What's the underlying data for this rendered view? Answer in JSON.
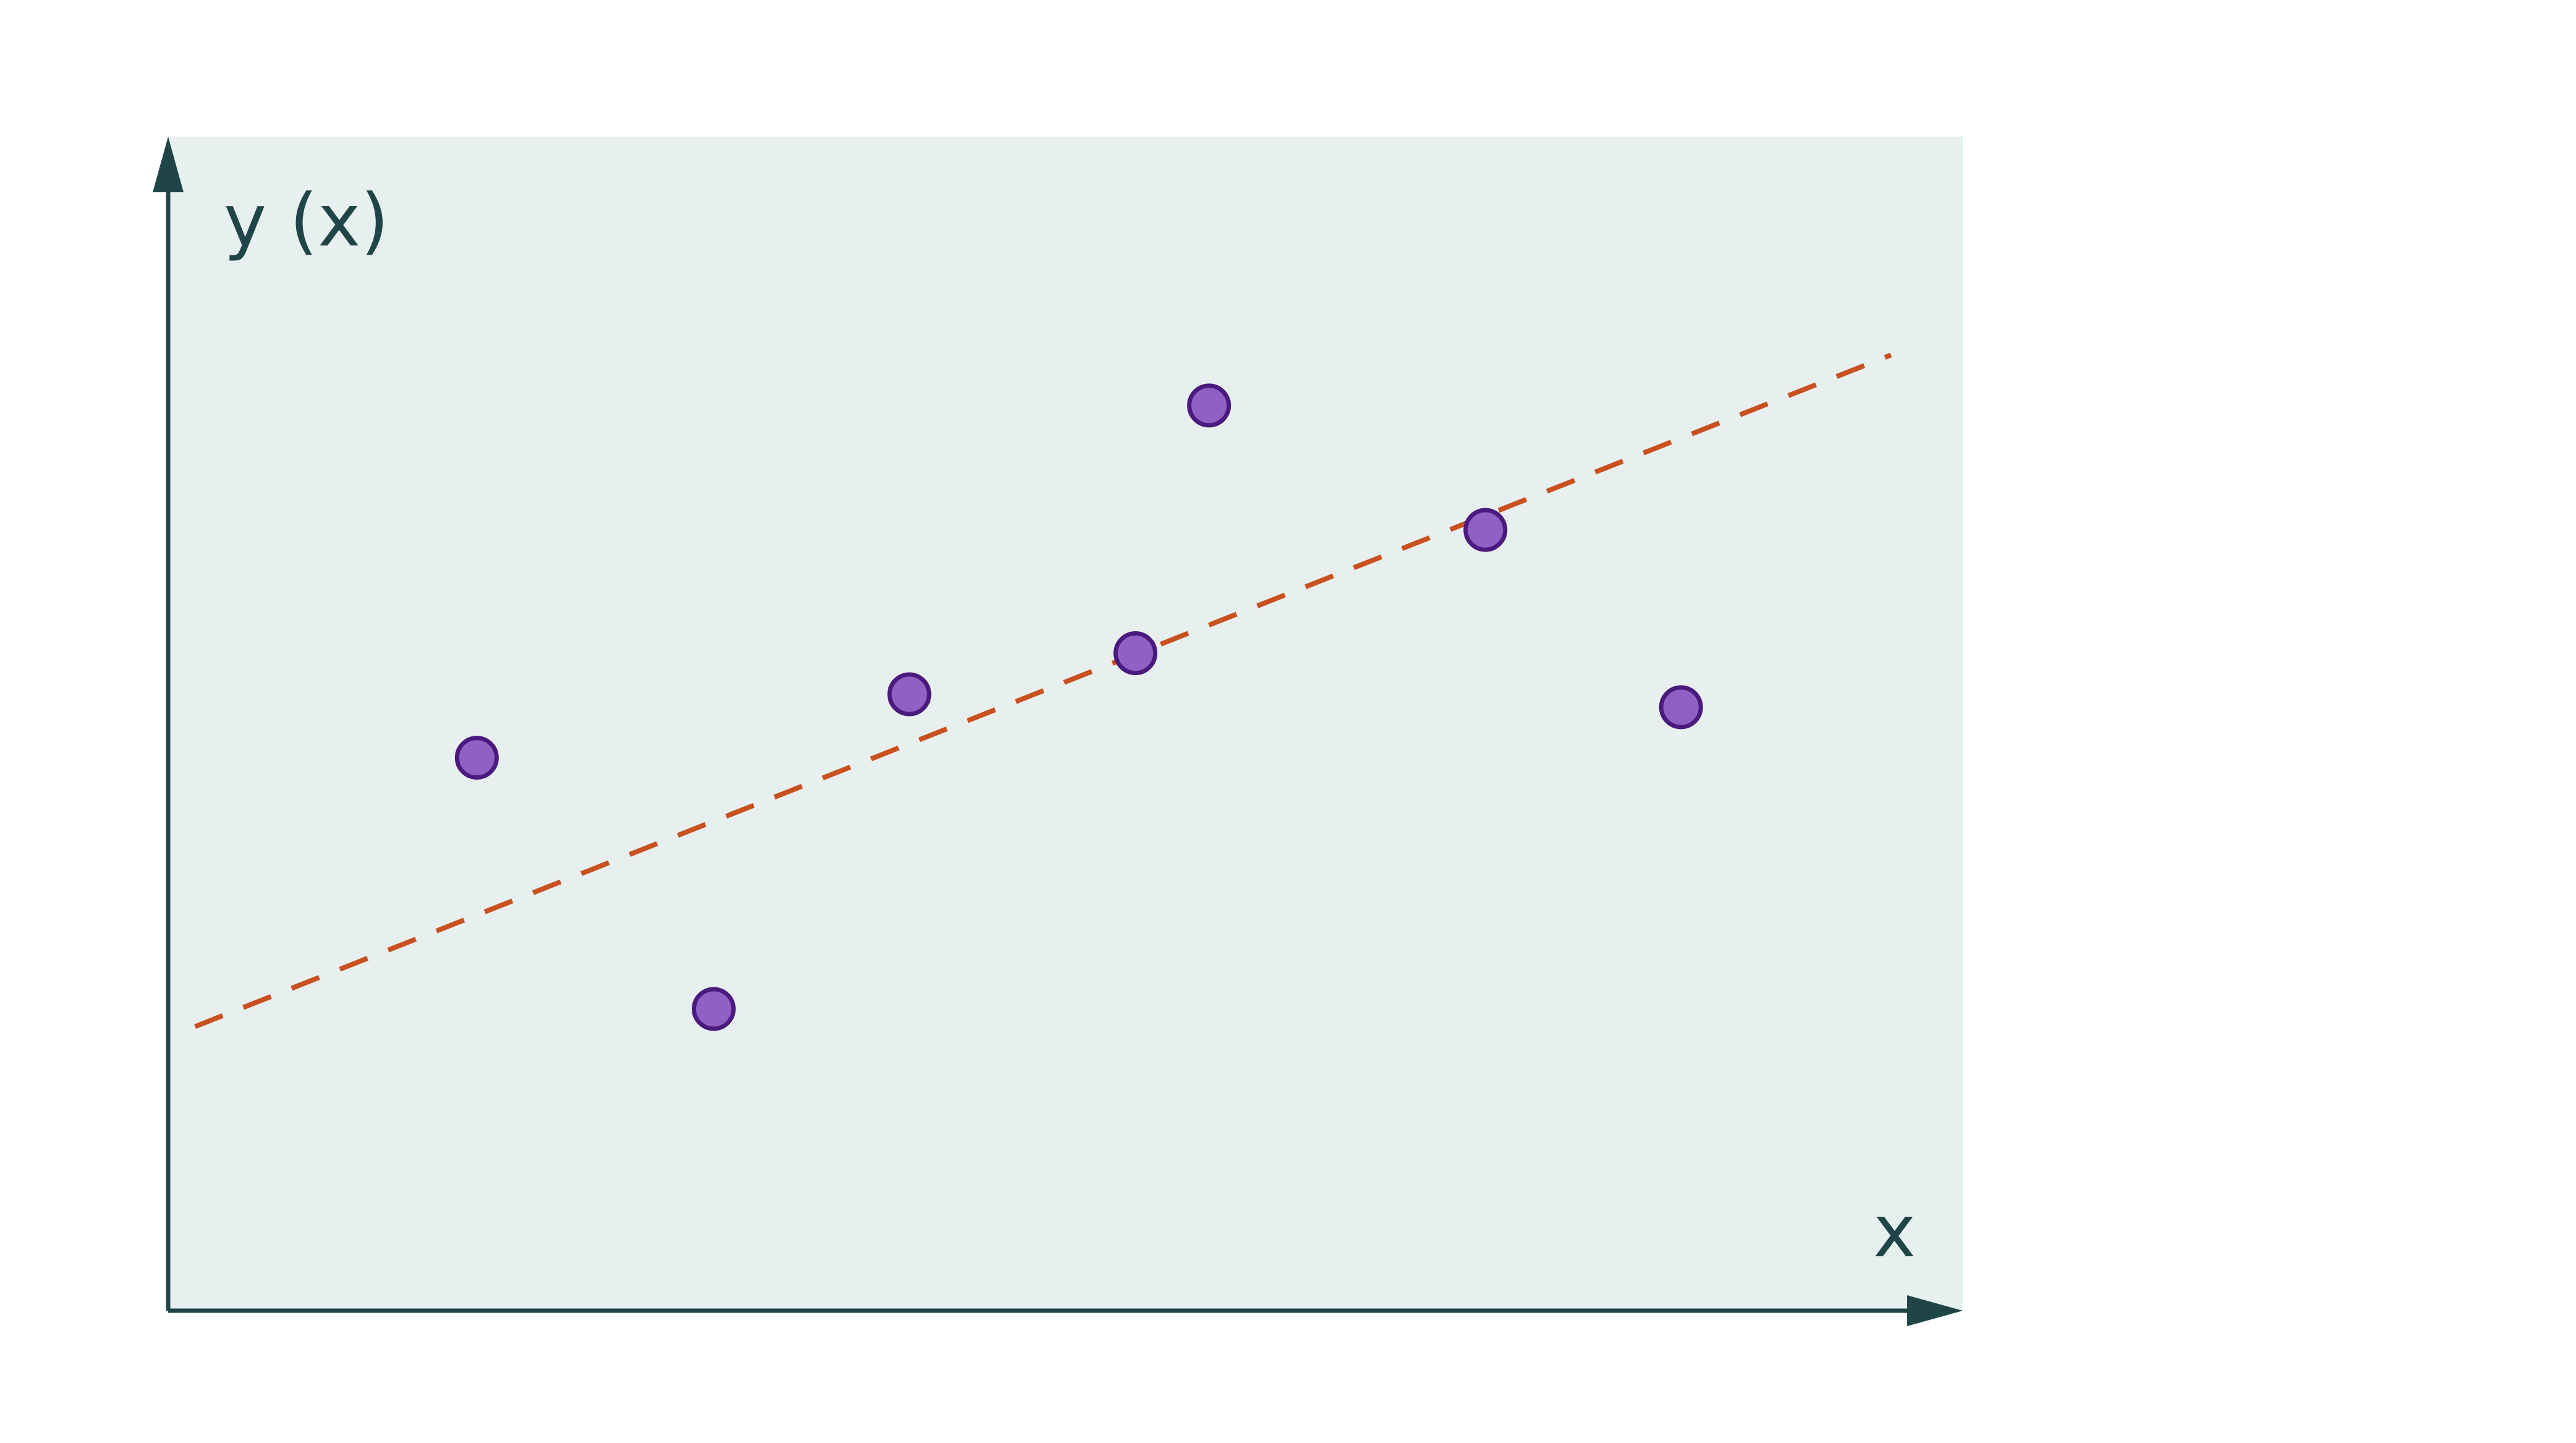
{
  "chart_data": {
    "type": "scatter",
    "title": "",
    "xlabel": "x",
    "ylabel": "y (x)",
    "xlim": [
      0,
      10
    ],
    "ylim": [
      0,
      10
    ],
    "grid": false,
    "legend": "none",
    "series": [
      {
        "kind": "points",
        "x": [
          1.72,
          3.04,
          4.13,
          5.39,
          5.8,
          7.34,
          8.43
        ],
        "y": [
          4.71,
          2.57,
          5.25,
          5.6,
          7.71,
          6.65,
          5.14
        ]
      },
      {
        "kind": "trend",
        "style": "dashed",
        "x": [
          0.15,
          9.6
        ],
        "y": [
          2.42,
          8.14
        ]
      }
    ],
    "colors": {
      "plot_background": "#e8f0ef",
      "axis": "#1f4548",
      "label_text": "#1f4548",
      "point_fill": "#9160c4",
      "point_stroke": "#4b1a7e",
      "trend_line": "#c9501f"
    }
  }
}
